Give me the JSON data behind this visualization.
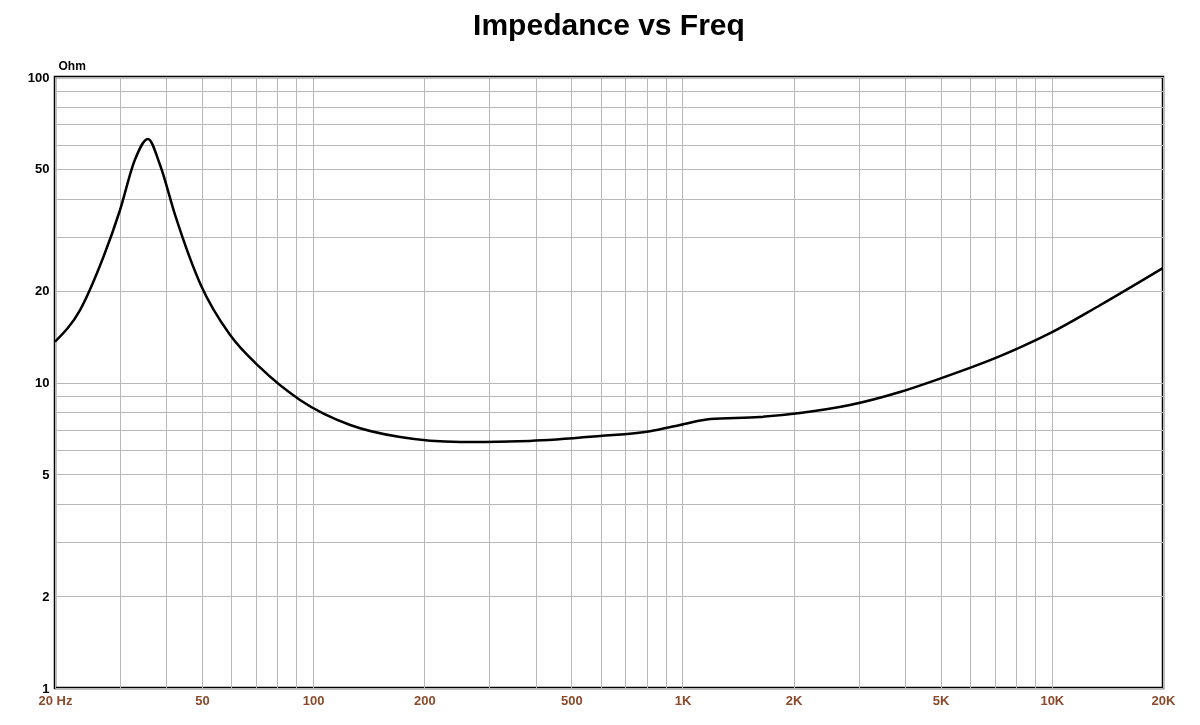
{
  "chart_data": {
    "type": "line",
    "title": "Impedance vs Freq",
    "ylabel": "Ohm",
    "log": "xy",
    "grid": true,
    "marker": "none",
    "line_style": "solid",
    "xlim": [
      20,
      20000
    ],
    "ylim": [
      1,
      100
    ],
    "xticks": [
      {
        "value": 20,
        "label": "20  Hz"
      },
      {
        "value": 30,
        "label": null
      },
      {
        "value": 40,
        "label": null
      },
      50,
      {
        "value": 60,
        "label": null
      },
      {
        "value": 70,
        "label": null
      },
      {
        "value": 80,
        "label": null
      },
      {
        "value": 90,
        "label": null
      },
      100,
      200,
      {
        "value": 300,
        "label": null
      },
      {
        "value": 400,
        "label": null
      },
      500,
      {
        "value": 600,
        "label": null
      },
      {
        "value": 700,
        "label": null
      },
      {
        "value": 800,
        "label": null
      },
      {
        "value": 900,
        "label": null
      },
      {
        "value": 1000,
        "label": "1K"
      },
      {
        "value": 2000,
        "label": "2K"
      },
      {
        "value": 3000,
        "label": null
      },
      {
        "value": 4000,
        "label": null
      },
      {
        "value": 5000,
        "label": "5K"
      },
      {
        "value": 6000,
        "label": null
      },
      {
        "value": 7000,
        "label": null
      },
      {
        "value": 8000,
        "label": null
      },
      {
        "value": 9000,
        "label": null
      },
      {
        "value": 10000,
        "label": "10K"
      },
      {
        "value": 20000,
        "label": "20K"
      }
    ],
    "yticks": [
      1,
      2,
      {
        "value": 3,
        "label": null
      },
      {
        "value": 4,
        "label": null
      },
      5,
      {
        "value": 6,
        "label": null
      },
      {
        "value": 7,
        "label": null
      },
      {
        "value": 8,
        "label": null
      },
      {
        "value": 9,
        "label": null
      },
      10,
      20,
      {
        "value": 30,
        "label": null
      },
      {
        "value": 40,
        "label": null
      },
      50,
      {
        "value": 60,
        "label": null
      },
      {
        "value": 70,
        "label": null
      },
      {
        "value": 80,
        "label": null
      },
      {
        "value": 90,
        "label": null
      },
      100
    ],
    "series": [
      {
        "color": "#000000",
        "x": [
          20,
          23.4,
          26.5,
          30,
          32.9,
          35.7,
          38.5,
          42.3,
          49.6,
          59.6,
          71.8,
          92.1,
          126,
          172,
          250,
          386,
          598,
          817,
          985,
          1190,
          1620,
          2080,
          2840,
          3880,
          4980,
          7240,
          9890,
          13500,
          20000
        ],
        "values": [
          13.6,
          17.3,
          24.2,
          36.7,
          53.5,
          62.7,
          51.5,
          35.3,
          20.9,
          14.3,
          11.2,
          8.77,
          7.26,
          6.63,
          6.39,
          6.44,
          6.68,
          6.93,
          7.26,
          7.6,
          7.71,
          7.95,
          8.44,
          9.31,
          10.3,
          12.2,
          14.5,
          17.9,
          23.7
        ]
      }
    ]
  }
}
